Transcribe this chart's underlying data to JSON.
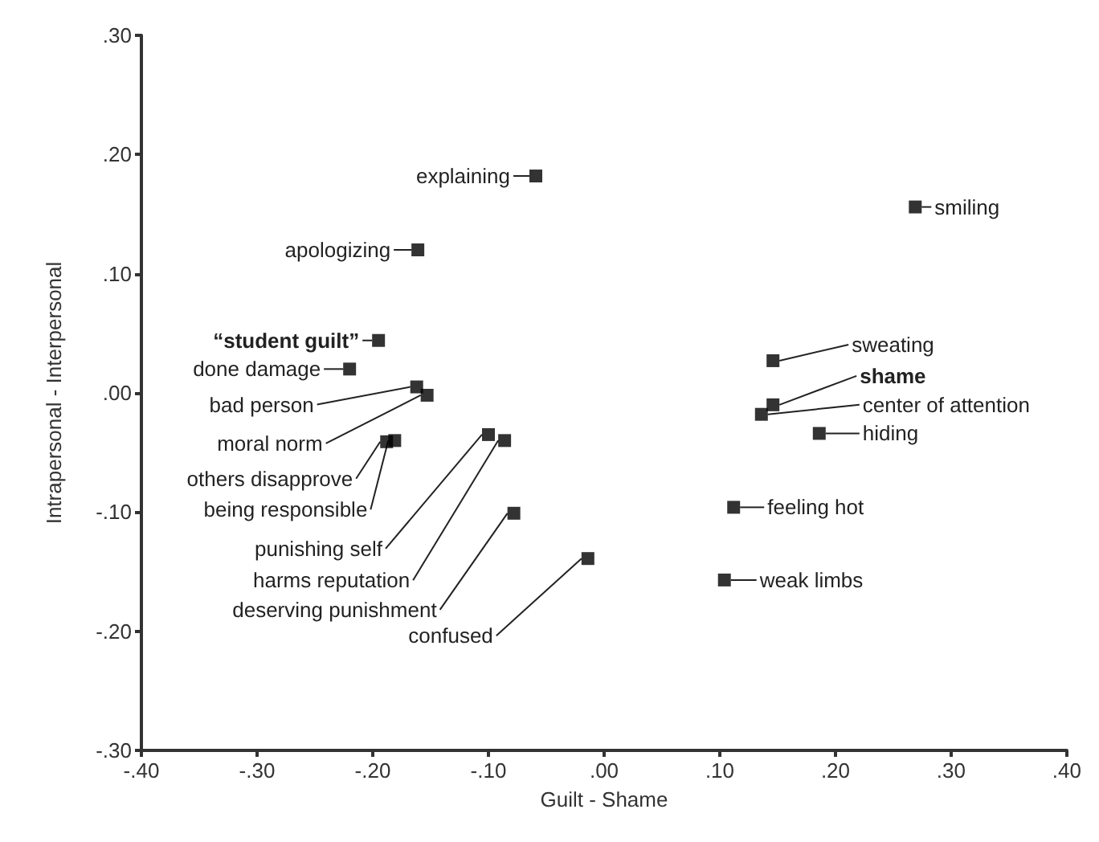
{
  "chart_data": {
    "type": "scatter",
    "xlabel": "Guilt - Shame",
    "ylabel": "Intrapersonal - Interpersonal",
    "marker": "square",
    "xlim": [
      -0.4,
      0.4
    ],
    "ylim": [
      -0.3,
      0.3
    ],
    "xticks": [
      {
        "value": -0.4,
        "label": "-.40"
      },
      {
        "value": -0.3,
        "label": "-.30"
      },
      {
        "value": -0.2,
        "label": "-.20"
      },
      {
        "value": -0.1,
        "label": "-.10"
      },
      {
        "value": 0,
        "label": ".00"
      },
      {
        "value": 0.1,
        "label": ".10"
      },
      {
        "value": 0.2,
        "label": ".20"
      },
      {
        "value": 0.3,
        "label": ".30"
      },
      {
        "value": 0.4,
        "label": ".40"
      }
    ],
    "yticks": [
      {
        "value": -0.3,
        "label": "-.30"
      },
      {
        "value": -0.2,
        "label": "-.20"
      },
      {
        "value": -0.1,
        "label": "-.10"
      },
      {
        "value": 0,
        "label": ".00"
      },
      {
        "value": 0.1,
        "label": ".10"
      },
      {
        "value": 0.2,
        "label": ".20"
      },
      {
        "value": 0.3,
        "label": ".30"
      }
    ],
    "series": [
      {
        "color": "#000000",
        "x": [
          -0.059,
          -0.161,
          0.269,
          -0.195,
          -0.22,
          -0.162,
          -0.153,
          -0.188,
          -0.181,
          -0.1,
          -0.086,
          -0.078,
          -0.014,
          0.146,
          0.146,
          0.136,
          0.186,
          0.112,
          0.104
        ],
        "values": [
          0.182,
          0.12,
          0.156,
          0.044,
          0.02,
          0.005,
          -0.002,
          -0.041,
          -0.04,
          -0.035,
          -0.04,
          -0.101,
          -0.139,
          0.027,
          -0.01,
          -0.018,
          -0.034,
          -0.096,
          -0.157
        ]
      }
    ],
    "annotations": [
      {
        "text": "explaining",
        "x": -0.059,
        "y": 0.182
      },
      {
        "text": "apologizing",
        "x": -0.161,
        "y": 0.12
      },
      {
        "text": "smiling",
        "x": 0.269,
        "y": 0.156
      },
      {
        "text": "“student guilt”",
        "x": -0.195,
        "y": 0.044
      },
      {
        "text": "done damage",
        "x": -0.22,
        "y": 0.02
      },
      {
        "text": "bad person",
        "x": -0.162,
        "y": 0.005
      },
      {
        "text": "moral norm",
        "x": -0.153,
        "y": -0.002
      },
      {
        "text": "others disapprove",
        "x": -0.188,
        "y": -0.041
      },
      {
        "text": "being responsible",
        "x": -0.181,
        "y": -0.04
      },
      {
        "text": "punishing self",
        "x": -0.1,
        "y": -0.035
      },
      {
        "text": "harms reputation",
        "x": -0.086,
        "y": -0.04
      },
      {
        "text": "deserving punishment",
        "x": -0.078,
        "y": -0.101
      },
      {
        "text": "confused",
        "x": -0.014,
        "y": -0.139
      },
      {
        "text": "sweating",
        "x": 0.146,
        "y": 0.027
      },
      {
        "text": "shame",
        "x": 0.146,
        "y": -0.01
      },
      {
        "text": "center of attention",
        "x": 0.136,
        "y": -0.018
      },
      {
        "text": "hiding",
        "x": 0.186,
        "y": -0.034
      },
      {
        "text": "feeling hot",
        "x": 0.112,
        "y": -0.096
      },
      {
        "text": "weak limbs",
        "x": 0.104,
        "y": -0.157
      }
    ]
  }
}
